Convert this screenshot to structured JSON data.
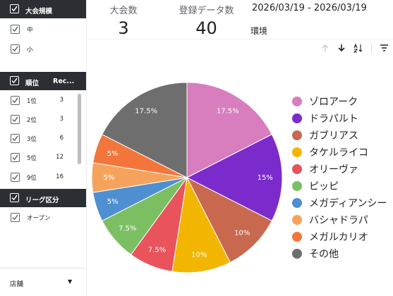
{
  "filters": {
    "tournament_scale": {
      "title": "大会規模",
      "items": [
        {
          "label": "中"
        },
        {
          "label": "小"
        }
      ]
    },
    "ranking": {
      "title": "順位",
      "column": "Rec...",
      "items": [
        {
          "label": "1位",
          "count": "3"
        },
        {
          "label": "2位",
          "count": "3"
        },
        {
          "label": "3位",
          "count": "6"
        },
        {
          "label": "5位",
          "count": "12"
        },
        {
          "label": "9位",
          "count": "16"
        }
      ]
    },
    "league": {
      "title": "リーグ区分",
      "items": [
        {
          "label": "オープン"
        }
      ]
    },
    "store": {
      "label": "店舗"
    }
  },
  "kpis": {
    "tournaments": {
      "label": "大会数",
      "value": "3"
    },
    "records": {
      "label": "登録データ数",
      "value": "40"
    }
  },
  "date_range": "2026/03/19 - 2026/03/19",
  "region_label": "環境",
  "icons": {
    "sort_up": "arrow-up-icon",
    "sort_down": "arrow-down-icon",
    "sort_az": "sort-az-icon",
    "filter": "filter-icon"
  },
  "chart_data": {
    "type": "pie",
    "categories": [
      "ゾロアーク",
      "ドラパルト",
      "ガブリアス",
      "タケルライコ",
      "オリーヴァ",
      "ピッピ",
      "メガディアンシー",
      "バシャドラパ",
      "メガルカリオ",
      "その他"
    ],
    "values": [
      17.5,
      15,
      10,
      10,
      7.5,
      7.5,
      5,
      5,
      5,
      17.5
    ],
    "labels": [
      "17.5%",
      "15%",
      "10%",
      "10%",
      "7.5%",
      "7.5%",
      "5%",
      "5%",
      "5%",
      "17.5%"
    ],
    "colors": [
      "#d87dbd",
      "#7b2bcc",
      "#c8694f",
      "#f2b600",
      "#e8535c",
      "#7cbf63",
      "#4e8fd1",
      "#f5a35c",
      "#f2763b",
      "#6e6e6e"
    ],
    "legend_position": "right"
  }
}
